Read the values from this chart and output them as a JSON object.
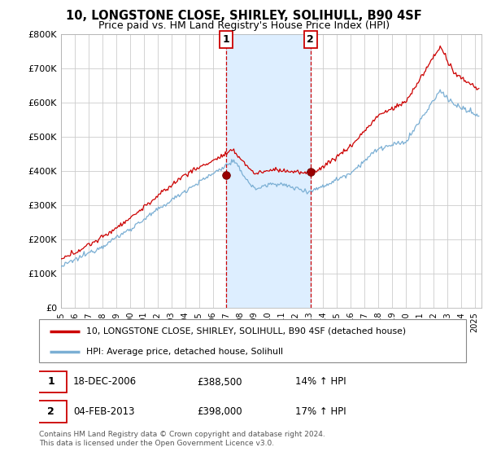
{
  "title": "10, LONGSTONE CLOSE, SHIRLEY, SOLIHULL, B90 4SF",
  "subtitle": "Price paid vs. HM Land Registry's House Price Index (HPI)",
  "ylim": [
    0,
    800000
  ],
  "yticks": [
    0,
    100000,
    200000,
    300000,
    400000,
    500000,
    600000,
    700000,
    800000
  ],
  "ytick_labels": [
    "£0",
    "£100K",
    "£200K",
    "£300K",
    "£400K",
    "£500K",
    "£600K",
    "£700K",
    "£800K"
  ],
  "hpi_color": "#7bafd4",
  "price_color": "#cc0000",
  "shade_color": "#ddeeff",
  "sale1_x": 2006.96,
  "sale1_y": 388500,
  "sale2_x": 2013.09,
  "sale2_y": 398000,
  "legend_line1": "10, LONGSTONE CLOSE, SHIRLEY, SOLIHULL, B90 4SF (detached house)",
  "legend_line2": "HPI: Average price, detached house, Solihull",
  "sale1_date": "18-DEC-2006",
  "sale1_price": "£388,500",
  "sale1_hpi": "14% ↑ HPI",
  "sale2_date": "04-FEB-2013",
  "sale2_price": "£398,000",
  "sale2_hpi": "17% ↑ HPI",
  "footer": "Contains HM Land Registry data © Crown copyright and database right 2024.\nThis data is licensed under the Open Government Licence v3.0.",
  "xlim_start": 1995,
  "xlim_end": 2025.5,
  "title_fontsize": 10.5,
  "subtitle_fontsize": 9
}
